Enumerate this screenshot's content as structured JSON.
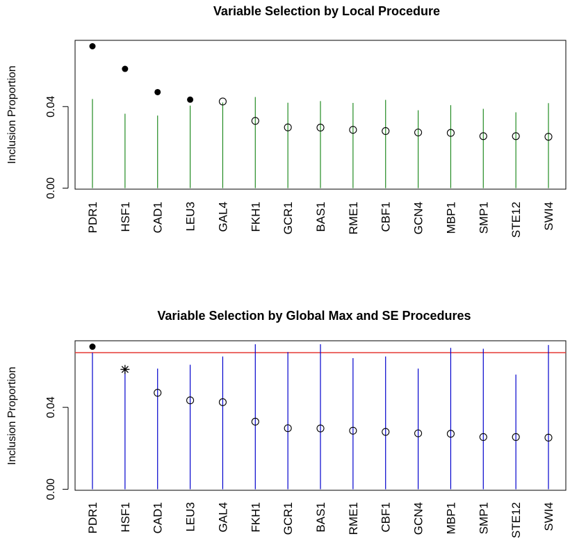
{
  "chart_data": [
    {
      "type": "scatter",
      "title": "Variable Selection by Local Procedure",
      "ylabel": "Inclusion Proportion",
      "xlabel": "",
      "ylim": [
        -0.0005,
        0.0725
      ],
      "yticks": [
        0.0,
        0.04
      ],
      "ytick_labels": [
        "0.00",
        "0.04"
      ],
      "categories": [
        "PDR1",
        "HSF1",
        "CAD1",
        "LEU3",
        "GAL4",
        "FKH1",
        "GCR1",
        "BAS1",
        "RME1",
        "CBF1",
        "GCN4",
        "MBP1",
        "SMP1",
        "STE12",
        "SWI4"
      ],
      "values": [
        0.0696,
        0.0585,
        0.0471,
        0.0434,
        0.0425,
        0.033,
        0.0298,
        0.0297,
        0.0286,
        0.028,
        0.0273,
        0.0271,
        0.0255,
        0.0255,
        0.0252
      ],
      "thresholds": [
        0.0437,
        0.0365,
        0.0356,
        0.0405,
        0.042,
        0.0447,
        0.0419,
        0.0427,
        0.0418,
        0.0433,
        0.0382,
        0.0407,
        0.0389,
        0.0372,
        0.0417
      ],
      "selected": [
        true,
        true,
        true,
        true,
        false,
        false,
        false,
        false,
        false,
        false,
        false,
        false,
        false,
        false,
        false
      ],
      "threshold_color": "#228B22",
      "grid": false
    },
    {
      "type": "scatter",
      "title": "Variable Selection by Global Max and SE Procedures",
      "ylabel": "Inclusion Proportion",
      "xlabel": "",
      "ylim": [
        -0.0005,
        0.0725
      ],
      "yticks": [
        0.0,
        0.04
      ],
      "ytick_labels": [
        "0.00",
        "0.04"
      ],
      "categories": [
        "PDR1",
        "HSF1",
        "CAD1",
        "LEU3",
        "GAL4",
        "FKH1",
        "GCR1",
        "BAS1",
        "RME1",
        "CBF1",
        "GCN4",
        "MBP1",
        "SMP1",
        "STE12",
        "SWI4"
      ],
      "values": [
        0.0696,
        0.0585,
        0.0471,
        0.0434,
        0.0425,
        0.033,
        0.0298,
        0.0297,
        0.0286,
        0.028,
        0.0273,
        0.0271,
        0.0255,
        0.0255,
        0.0252
      ],
      "thresholds": [
        0.0667,
        0.0589,
        0.0589,
        0.0608,
        0.0648,
        0.0708,
        0.067,
        0.0708,
        0.064,
        0.0648,
        0.0589,
        0.069,
        0.0686,
        0.056,
        0.0704
      ],
      "global_max": 0.0667,
      "markers": [
        "filled",
        "star",
        "open",
        "open",
        "open",
        "open",
        "open",
        "open",
        "open",
        "open",
        "open",
        "open",
        "open",
        "open",
        "open"
      ],
      "threshold_color": "#0000CD",
      "global_max_color": "#E53935",
      "grid": false
    }
  ]
}
